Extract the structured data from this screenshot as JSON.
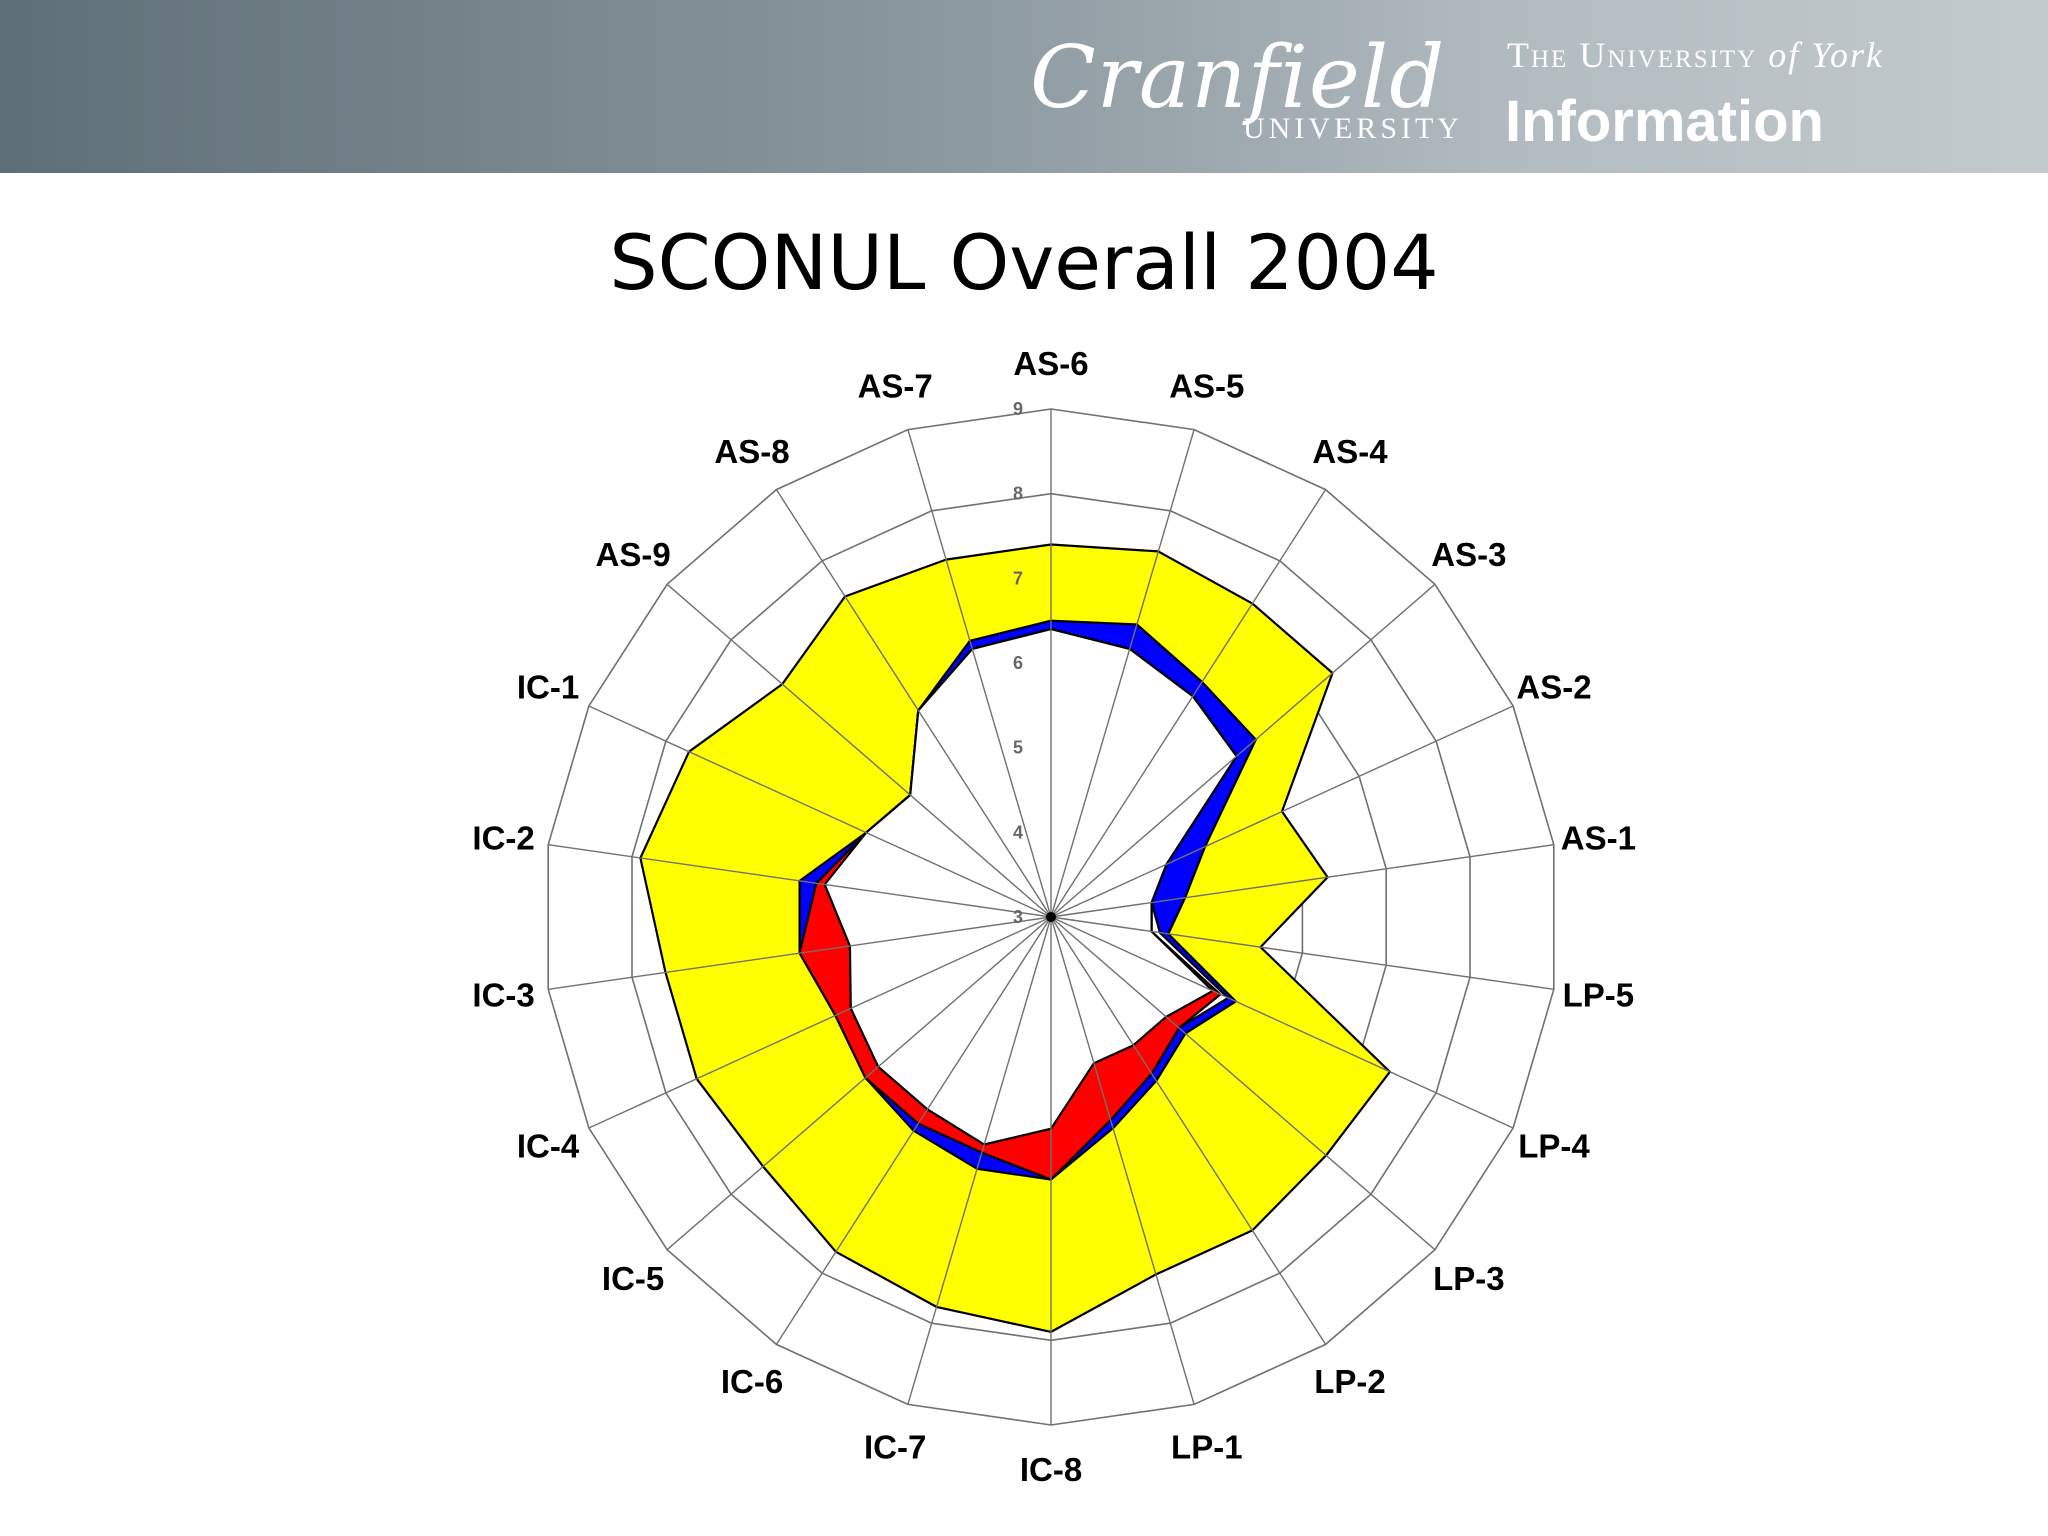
{
  "header": {
    "logo_cranfield_script": "Cranfield",
    "logo_cranfield_sub": "UNIVERSITY",
    "logo_york_line1": "The University",
    "logo_york_line1_italic": "of York",
    "logo_york_line2": "Information",
    "banner_color_left": "#5f6f77",
    "banner_color_right": "#c3cacd"
  },
  "chart_data": {
    "type": "radar",
    "title": "SCONUL Overall 2004",
    "axes": [
      "AS-6",
      "AS-5",
      "AS-4",
      "AS-3",
      "AS-2",
      "AS-1",
      "LP-5",
      "LP-4",
      "LP-3",
      "LP-2",
      "LP-1",
      "IC-8",
      "IC-7",
      "IC-6",
      "IC-5",
      "IC-4",
      "IC-3",
      "IC-2",
      "IC-1",
      "AS-9",
      "AS-8",
      "AS-7"
    ],
    "rlim": [
      3,
      9
    ],
    "ticks": [
      3,
      4,
      5,
      6,
      7,
      8,
      9
    ],
    "grid": true,
    "series": [
      {
        "values": [
          7.4,
          7.5,
          7.4,
          7.4,
          6.0,
          6.3,
          5.5,
          7.4,
          7.3,
          7.4,
          7.4,
          7.9,
          7.8,
          7.7,
          7.5,
          7.6,
          7.6,
          7.9,
          7.7,
          7.2,
          7.5,
          7.4
        ],
        "fill": "#ffff00",
        "stroke": "#000000"
      },
      {
        "values": [
          6.5,
          6.6,
          6.3,
          6.2,
          5.0,
          4.6,
          4.4,
          5.4,
          5.1,
          5.3,
          5.6,
          6.1,
          6.1,
          6.0,
          5.9,
          5.8,
          6.0,
          6.0,
          5.4,
          5.2,
          5.9,
          6.4
        ],
        "fill": "#0000ff",
        "stroke": "#000000"
      },
      {
        "values": [
          6.4,
          6.3,
          6.1,
          5.9,
          4.5,
          4.2,
          4.3,
          5.3,
          5.0,
          5.1,
          5.3,
          5.6,
          5.8,
          5.8,
          5.8,
          5.7,
          5.7,
          5.7,
          5.4,
          5.2,
          5.9,
          6.3
        ],
        "fill": "#ffffff",
        "stroke": "#000000"
      },
      {
        "values": [
          6.4,
          6.3,
          6.1,
          5.9,
          4.5,
          4.2,
          4.2,
          5.2,
          5.0,
          5.2,
          5.5,
          6.1,
          5.9,
          5.9,
          5.9,
          5.8,
          6.0,
          5.8,
          5.4,
          5.2,
          5.9,
          6.3
        ],
        "fill": "#ff0000",
        "stroke": "#000000"
      },
      {
        "values": [
          6.4,
          6.3,
          6.1,
          5.9,
          4.5,
          4.2,
          4.2,
          5.1,
          4.8,
          4.8,
          4.8,
          5.5,
          5.8,
          5.7,
          5.7,
          5.6,
          5.4,
          5.7,
          5.4,
          5.2,
          5.9,
          6.3
        ],
        "fill": "#ffffff",
        "stroke": "#000000"
      }
    ]
  }
}
